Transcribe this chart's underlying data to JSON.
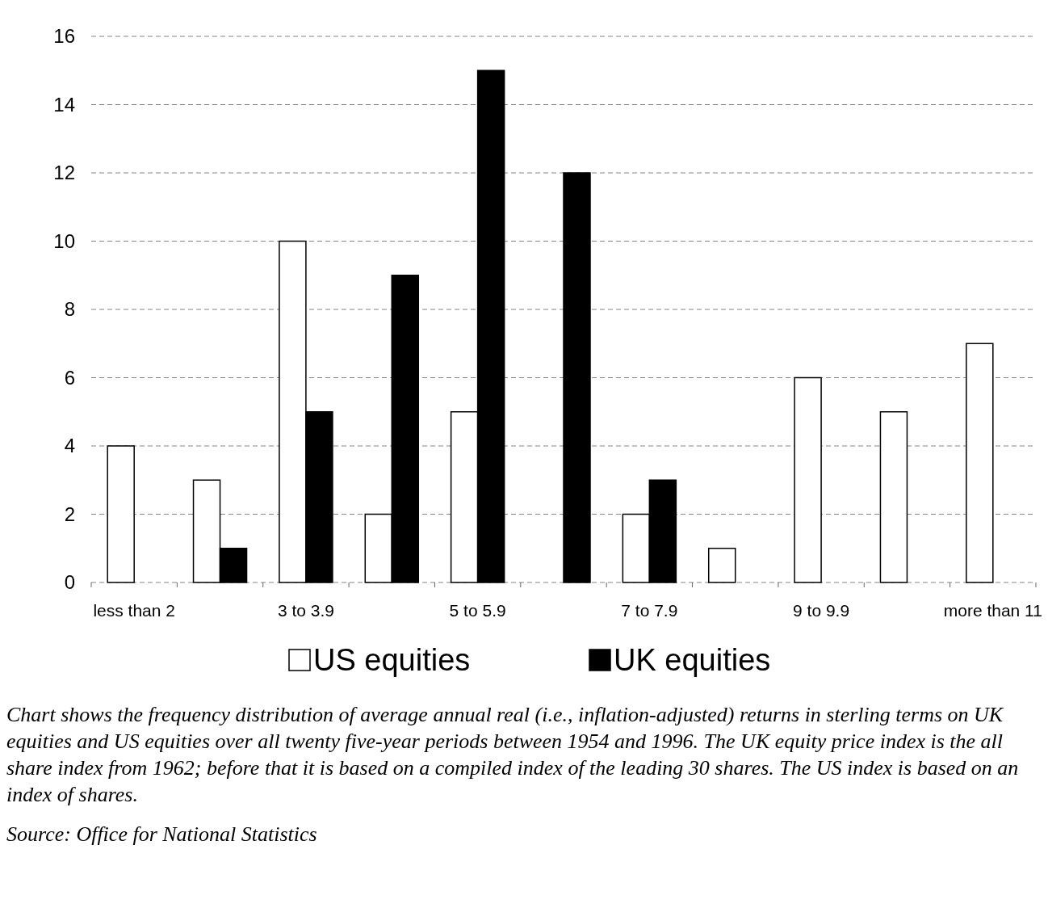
{
  "chart_data": {
    "type": "bar",
    "categories": [
      "less than 2",
      null,
      "3 to 3.9",
      null,
      "5 to 5.9",
      null,
      "7 to 7.9",
      null,
      "9 to 9.9",
      null,
      "more than 11"
    ],
    "series": [
      {
        "name": "US equities",
        "color": "#ffffff",
        "values": [
          4,
          3,
          10,
          2,
          5,
          0,
          2,
          1,
          6,
          5,
          7
        ]
      },
      {
        "name": "UK equities",
        "color": "#000000",
        "values": [
          0,
          1,
          5,
          9,
          15,
          12,
          3,
          0,
          0,
          0,
          0
        ]
      }
    ],
    "ylim": [
      0,
      16
    ],
    "yticks": [
      0,
      2,
      4,
      6,
      8,
      10,
      12,
      14,
      16
    ],
    "grid": "y",
    "legend": "bottom",
    "annotations": [
      "Chart shows the frequency distribution of average annual real (i.e., inflation-adjusted) returns in sterling terms on UK equities and US equities over all twenty five-year periods between 1954 and 1996. The UK equity price index is the all share index from 1962; before that it is based on a compiled index of the leading 30 shares. The US index is based on an index of shares.",
      "Source: Office for National Statistics"
    ]
  }
}
